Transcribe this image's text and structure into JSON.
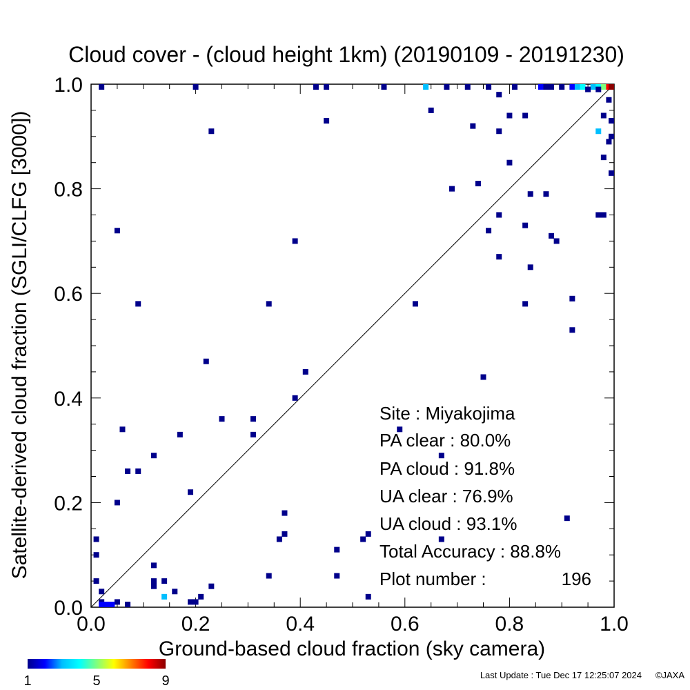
{
  "footer": {
    "last_update": "Last Update : Tue Dec 17 12:25:07 2024",
    "copyright": "©JAXA"
  },
  "colorbar": {
    "labels": [
      "1",
      "5",
      "9"
    ],
    "values": [
      1,
      5,
      9
    ],
    "stops": [
      "#00008b",
      "#0000ff",
      "#00bfff",
      "#00ffff",
      "#7fff7f",
      "#ffff00",
      "#ff7f00",
      "#ff0000",
      "#8b0000"
    ]
  },
  "stats": {
    "site": "Site : Miyakojima",
    "pa_clear": "PA clear :  80.0%",
    "pa_cloud": "PA cloud :  91.8%",
    "ua_clear": "UA clear :  76.9%",
    "ua_cloud": "UA cloud :  93.1%",
    "total_accuracy": "Total Accuracy :  88.8%",
    "plot_number_label": "Plot number :",
    "plot_number_value": "196"
  },
  "chart_data": {
    "type": "scatter",
    "title": "Cloud cover - (cloud height 1km)  (20190109 - 20191230)",
    "xlabel": "Ground-based cloud fraction (sky camera)",
    "ylabel": "Satellite-derived cloud fraction (SGLI/CLFG [3000])",
    "xlim": [
      0.0,
      1.0
    ],
    "ylim": [
      0.0,
      1.0
    ],
    "x_ticks": [
      "0.0",
      "0.2",
      "0.4",
      "0.6",
      "0.8",
      "1.0"
    ],
    "y_ticks": [
      "0.0",
      "0.2",
      "0.4",
      "0.6",
      "0.8",
      "1.0"
    ],
    "reference_line": "1:1 diagonal",
    "color_encoding": "point count (1-9)",
    "points": [
      {
        "x": 0.02,
        "y": 1.0,
        "count": 1
      },
      {
        "x": 0.2,
        "y": 1.0,
        "count": 1
      },
      {
        "x": 0.43,
        "y": 1.0,
        "count": 1
      },
      {
        "x": 0.45,
        "y": 1.0,
        "count": 1
      },
      {
        "x": 0.56,
        "y": 1.0,
        "count": 1
      },
      {
        "x": 0.64,
        "y": 1.0,
        "count": 3
      },
      {
        "x": 0.68,
        "y": 1.0,
        "count": 1
      },
      {
        "x": 0.72,
        "y": 1.0,
        "count": 1
      },
      {
        "x": 0.76,
        "y": 1.0,
        "count": 1
      },
      {
        "x": 0.81,
        "y": 1.0,
        "count": 1
      },
      {
        "x": 0.86,
        "y": 1.0,
        "count": 2
      },
      {
        "x": 0.87,
        "y": 1.0,
        "count": 1
      },
      {
        "x": 0.88,
        "y": 1.0,
        "count": 1
      },
      {
        "x": 0.9,
        "y": 1.0,
        "count": 1
      },
      {
        "x": 0.92,
        "y": 1.0,
        "count": 2
      },
      {
        "x": 0.93,
        "y": 1.0,
        "count": 3
      },
      {
        "x": 0.94,
        "y": 1.0,
        "count": 4
      },
      {
        "x": 0.96,
        "y": 1.0,
        "count": 3
      },
      {
        "x": 0.97,
        "y": 1.0,
        "count": 4
      },
      {
        "x": 0.98,
        "y": 1.0,
        "count": 5
      },
      {
        "x": 0.99,
        "y": 1.0,
        "count": 8
      },
      {
        "x": 1.0,
        "y": 1.0,
        "count": 9
      },
      {
        "x": 0.95,
        "y": 0.99,
        "count": 1
      },
      {
        "x": 0.97,
        "y": 0.99,
        "count": 1
      },
      {
        "x": 0.78,
        "y": 0.98,
        "count": 1
      },
      {
        "x": 0.99,
        "y": 0.97,
        "count": 1
      },
      {
        "x": 0.65,
        "y": 0.95,
        "count": 1
      },
      {
        "x": 0.8,
        "y": 0.94,
        "count": 1
      },
      {
        "x": 0.83,
        "y": 0.94,
        "count": 1
      },
      {
        "x": 0.98,
        "y": 0.94,
        "count": 1
      },
      {
        "x": 0.45,
        "y": 0.93,
        "count": 1
      },
      {
        "x": 1.0,
        "y": 0.93,
        "count": 1
      },
      {
        "x": 0.73,
        "y": 0.92,
        "count": 1
      },
      {
        "x": 0.23,
        "y": 0.91,
        "count": 1
      },
      {
        "x": 0.78,
        "y": 0.91,
        "count": 1
      },
      {
        "x": 0.97,
        "y": 0.91,
        "count": 3
      },
      {
        "x": 1.0,
        "y": 0.9,
        "count": 1
      },
      {
        "x": 0.99,
        "y": 0.89,
        "count": 1
      },
      {
        "x": 0.98,
        "y": 0.86,
        "count": 1
      },
      {
        "x": 0.8,
        "y": 0.85,
        "count": 1
      },
      {
        "x": 1.0,
        "y": 0.83,
        "count": 1
      },
      {
        "x": 0.74,
        "y": 0.81,
        "count": 1
      },
      {
        "x": 0.69,
        "y": 0.8,
        "count": 1
      },
      {
        "x": 0.84,
        "y": 0.79,
        "count": 1
      },
      {
        "x": 0.87,
        "y": 0.79,
        "count": 1
      },
      {
        "x": 0.78,
        "y": 0.75,
        "count": 1
      },
      {
        "x": 0.97,
        "y": 0.75,
        "count": 1
      },
      {
        "x": 0.98,
        "y": 0.75,
        "count": 1
      },
      {
        "x": 0.83,
        "y": 0.73,
        "count": 1
      },
      {
        "x": 0.05,
        "y": 0.72,
        "count": 1
      },
      {
        "x": 0.76,
        "y": 0.72,
        "count": 1
      },
      {
        "x": 0.88,
        "y": 0.71,
        "count": 1
      },
      {
        "x": 0.39,
        "y": 0.7,
        "count": 1
      },
      {
        "x": 0.89,
        "y": 0.7,
        "count": 1
      },
      {
        "x": 0.78,
        "y": 0.67,
        "count": 1
      },
      {
        "x": 0.84,
        "y": 0.65,
        "count": 1
      },
      {
        "x": 0.92,
        "y": 0.59,
        "count": 1
      },
      {
        "x": 0.09,
        "y": 0.58,
        "count": 1
      },
      {
        "x": 0.34,
        "y": 0.58,
        "count": 1
      },
      {
        "x": 0.62,
        "y": 0.58,
        "count": 1
      },
      {
        "x": 0.83,
        "y": 0.58,
        "count": 1
      },
      {
        "x": 0.92,
        "y": 0.53,
        "count": 1
      },
      {
        "x": 0.22,
        "y": 0.47,
        "count": 1
      },
      {
        "x": 0.41,
        "y": 0.45,
        "count": 1
      },
      {
        "x": 0.75,
        "y": 0.44,
        "count": 1
      },
      {
        "x": 0.39,
        "y": 0.4,
        "count": 1
      },
      {
        "x": 0.25,
        "y": 0.36,
        "count": 1
      },
      {
        "x": 0.31,
        "y": 0.36,
        "count": 1
      },
      {
        "x": 0.06,
        "y": 0.34,
        "count": 1
      },
      {
        "x": 0.59,
        "y": 0.34,
        "count": 1
      },
      {
        "x": 0.17,
        "y": 0.33,
        "count": 1
      },
      {
        "x": 0.31,
        "y": 0.33,
        "count": 1
      },
      {
        "x": 0.12,
        "y": 0.29,
        "count": 1
      },
      {
        "x": 0.67,
        "y": 0.29,
        "count": 1
      },
      {
        "x": 0.07,
        "y": 0.26,
        "count": 1
      },
      {
        "x": 0.09,
        "y": 0.26,
        "count": 1
      },
      {
        "x": 0.19,
        "y": 0.22,
        "count": 1
      },
      {
        "x": 0.05,
        "y": 0.2,
        "count": 1
      },
      {
        "x": 0.37,
        "y": 0.18,
        "count": 1
      },
      {
        "x": 0.91,
        "y": 0.17,
        "count": 1
      },
      {
        "x": 0.37,
        "y": 0.14,
        "count": 1
      },
      {
        "x": 0.53,
        "y": 0.14,
        "count": 1
      },
      {
        "x": 0.01,
        "y": 0.13,
        "count": 1
      },
      {
        "x": 0.36,
        "y": 0.13,
        "count": 1
      },
      {
        "x": 0.52,
        "y": 0.13,
        "count": 1
      },
      {
        "x": 0.67,
        "y": 0.13,
        "count": 1
      },
      {
        "x": 0.47,
        "y": 0.11,
        "count": 1
      },
      {
        "x": 0.01,
        "y": 0.1,
        "count": 1
      },
      {
        "x": 0.12,
        "y": 0.08,
        "count": 1
      },
      {
        "x": 0.34,
        "y": 0.06,
        "count": 1
      },
      {
        "x": 0.47,
        "y": 0.06,
        "count": 1
      },
      {
        "x": 0.01,
        "y": 0.05,
        "count": 1
      },
      {
        "x": 0.12,
        "y": 0.05,
        "count": 1
      },
      {
        "x": 0.14,
        "y": 0.05,
        "count": 1
      },
      {
        "x": 0.12,
        "y": 0.04,
        "count": 1
      },
      {
        "x": 0.23,
        "y": 0.04,
        "count": 1
      },
      {
        "x": 0.02,
        "y": 0.03,
        "count": 1
      },
      {
        "x": 0.16,
        "y": 0.03,
        "count": 1
      },
      {
        "x": 0.14,
        "y": 0.02,
        "count": 3
      },
      {
        "x": 0.21,
        "y": 0.02,
        "count": 1
      },
      {
        "x": 0.53,
        "y": 0.02,
        "count": 1
      },
      {
        "x": 0.02,
        "y": 0.01,
        "count": 1
      },
      {
        "x": 0.05,
        "y": 0.01,
        "count": 1
      },
      {
        "x": 0.19,
        "y": 0.01,
        "count": 1
      },
      {
        "x": 0.2,
        "y": 0.01,
        "count": 1
      },
      {
        "x": 0.02,
        "y": 0.0,
        "count": 2
      },
      {
        "x": 0.03,
        "y": 0.0,
        "count": 2
      },
      {
        "x": 0.04,
        "y": 0.0,
        "count": 2
      },
      {
        "x": 0.07,
        "y": 0.0,
        "count": 1
      }
    ]
  }
}
